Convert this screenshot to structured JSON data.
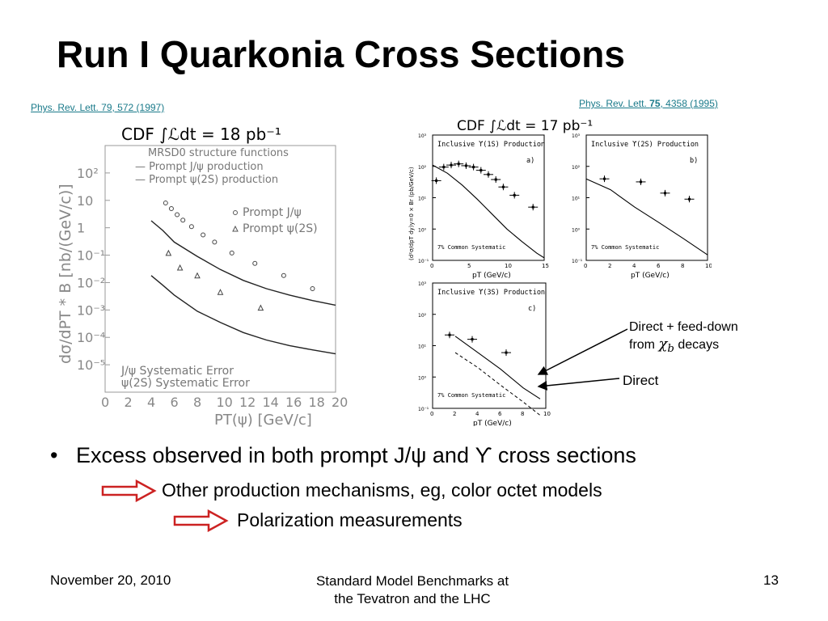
{
  "slide": {
    "title": "Run I Quarkonia Cross Sections",
    "ref_left": "Phys. Rev. Lett. 79, 572 (1997)",
    "ref_right_prefix": "Phys. Rev. Lett. ",
    "ref_right_volume": "75",
    "ref_right_suffix": ", 4358 (1995)",
    "bullet": "Excess observed in both prompt J/ψ and ϒ cross sections",
    "sub1": "Other production mechanisms, eg, color octet models",
    "sub2": "Polarization measurements",
    "annotation_top_line1": "Direct + feed-down",
    "annotation_top_from": "from ",
    "annotation_top_chi": "χ",
    "annotation_top_sub": "b",
    "annotation_top_decays": " decays",
    "annotation_bottom": "Direct",
    "footer_date": "November 20, 2010",
    "footer_center_line1": "Standard Model Benchmarks at",
    "footer_center_line2": "the Tevatron and the LHC",
    "footer_page": "13",
    "arrow_color": "#cc2222",
    "ref_color": "#1a7a8a"
  },
  "left_plot": {
    "header": "CDF ∫ℒdt = 18 pb⁻¹",
    "legend_lines": [
      "MRSD0 structure functions",
      "— Prompt J/ψ production",
      "— Prompt ψ(2S) production"
    ],
    "marker_legend": [
      "Prompt J/ψ",
      "Prompt ψ(2S)"
    ],
    "sys_legend": [
      "J/ψ Systematic Error",
      "ψ(2S) Systematic Error"
    ],
    "ylabel": "dσ/dPT * B [nb/(GeV/c)]",
    "xlabel": "PT(ψ) [GeV/c]",
    "yticks": [
      "10²",
      "10",
      "1",
      "10⁻¹",
      "10⁻²",
      "10⁻³",
      "10⁻⁴",
      "10⁻⁵"
    ],
    "xticks": [
      "0",
      "2",
      "4",
      "6",
      "8",
      "10",
      "12",
      "14",
      "16",
      "18",
      "20"
    ]
  },
  "chart_data": [
    {
      "type": "scatter",
      "title": "CDF ∫ℒdt = 18 pb⁻¹",
      "xlabel": "PT(ψ) [GeV/c]",
      "ylabel": "dσ/dPT * B [nb/(GeV/c)]",
      "xlim": [
        0,
        20
      ],
      "ylim": [
        1e-06,
        1000
      ],
      "yscale": "log",
      "series": [
        {
          "name": "Prompt J/ψ",
          "marker": "circle",
          "x": [
            5.25,
            5.75,
            6.25,
            6.75,
            7.5,
            8.5,
            9.5,
            11,
            13,
            15.5,
            18
          ],
          "y": [
            8,
            5,
            3,
            1.9,
            1.1,
            0.55,
            0.3,
            0.12,
            0.05,
            0.018,
            0.006
          ]
        },
        {
          "name": "Prompt ψ(2S)",
          "marker": "triangle",
          "x": [
            5.5,
            6.5,
            8,
            10,
            13.5
          ],
          "y": [
            0.12,
            0.035,
            0.018,
            0.0045,
            0.0012
          ]
        },
        {
          "name": "Prompt J/ψ production",
          "style": "line",
          "x": [
            4,
            5,
            6,
            8,
            10,
            12,
            14,
            16,
            18,
            20
          ],
          "y": [
            1.8,
            0.8,
            0.3,
            0.09,
            0.03,
            0.012,
            0.006,
            0.0035,
            0.0022,
            0.0015
          ]
        },
        {
          "name": "Prompt ψ(2S) production",
          "style": "line",
          "x": [
            4,
            5,
            6,
            8,
            10,
            12,
            14,
            16,
            18,
            20
          ],
          "y": [
            0.018,
            0.008,
            0.0035,
            0.0009,
            0.00035,
            0.00015,
            8e-05,
            5e-05,
            3.5e-05,
            2.5e-05
          ]
        }
      ]
    },
    {
      "type": "scatter",
      "title": "Inclusive ϒ(1S) Production",
      "panel": "a)",
      "xlabel": "pT (GeV/c)",
      "ylabel": "(d²σ/dpT dy)y=0 × Br (pb/GeV/c)",
      "xlim": [
        0,
        15
      ],
      "ylim": [
        0.1,
        1000
      ],
      "yscale": "log",
      "xticks": [
        "0",
        "5",
        "10",
        "15"
      ],
      "note": "7% Common Systematic",
      "points_x": [
        0.5,
        1.5,
        2.5,
        3.5,
        4.5,
        5.5,
        6.5,
        7.5,
        8.5,
        9.5,
        11,
        13.5
      ],
      "points_y": [
        35,
        95,
        110,
        120,
        105,
        95,
        75,
        55,
        38,
        22,
        12,
        5
      ],
      "theory_x": [
        0,
        2,
        4,
        6,
        8,
        10,
        12,
        14,
        15
      ],
      "theory_y": [
        110,
        60,
        25,
        9,
        3,
        1,
        0.4,
        0.17,
        0.12
      ]
    },
    {
      "type": "scatter",
      "title": "Inclusive ϒ(2S) Production",
      "panel": "b)",
      "xlabel": "pT (GeV/c)",
      "xlim": [
        0,
        10
      ],
      "ylim": [
        0.1,
        1000
      ],
      "yscale": "log",
      "xticks": [
        "0",
        "2",
        "4",
        "6",
        "8",
        "10"
      ],
      "note": "7% Common Systematic",
      "points_x": [
        1.5,
        4.5,
        6.5,
        8.5
      ],
      "points_y": [
        40,
        32,
        14,
        9
      ],
      "theory_x": [
        0,
        2,
        4,
        6,
        8,
        10
      ],
      "theory_y": [
        40,
        18,
        5,
        1.6,
        0.5,
        0.15
      ]
    },
    {
      "type": "scatter",
      "title": "Inclusive ϒ(3S) Production",
      "panel": "c)",
      "xlabel": "pT (GeV/c)",
      "xlim": [
        0,
        10
      ],
      "ylim": [
        0.1,
        1000
      ],
      "yscale": "log",
      "xticks": [
        "0",
        "2",
        "4",
        "6",
        "8",
        "10"
      ],
      "note": "7% Common Systematic",
      "points_x": [
        1.5,
        3.5,
        6.5
      ],
      "points_y": [
        22,
        16,
        6
      ],
      "theory_x": [
        2,
        4,
        6,
        8,
        9.5
      ],
      "theory_y": [
        20,
        6,
        1.8,
        0.45,
        0.2
      ],
      "direct_x": [
        2,
        4,
        6,
        8,
        9.5
      ],
      "direct_y": [
        6,
        2,
        0.55,
        0.16,
        0.06
      ]
    }
  ]
}
